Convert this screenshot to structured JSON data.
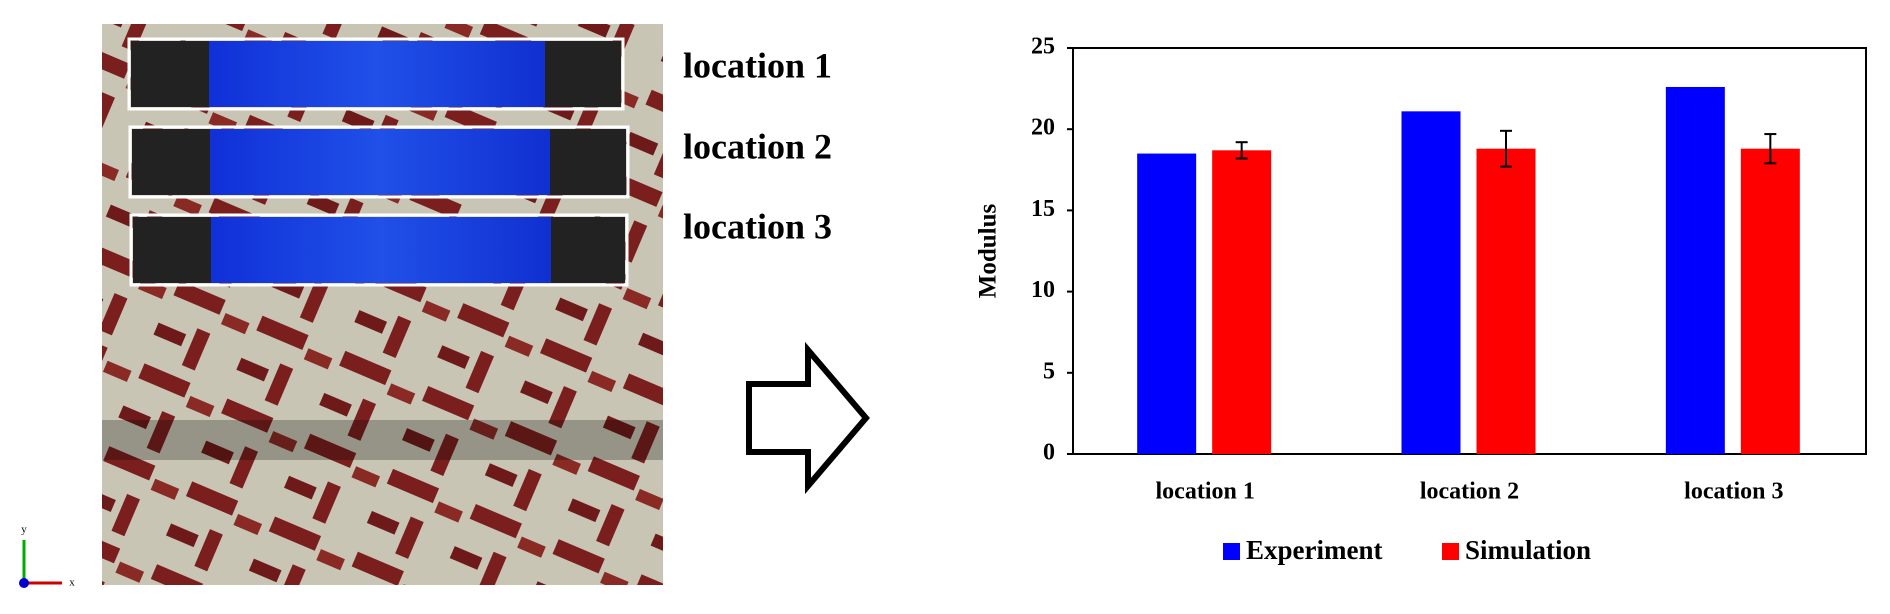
{
  "image_labels": [
    "location 1",
    "location 2",
    "location 3"
  ],
  "axis_triad": [
    "y",
    "x"
  ],
  "chart_data": {
    "type": "bar",
    "ylabel": "Modulus",
    "categories": [
      "location 1",
      "location 2",
      "location 3"
    ],
    "series": [
      {
        "name": "Experiment",
        "color": "#0000ff",
        "values": [
          18.5,
          21.1,
          22.6
        ]
      },
      {
        "name": "Simulation",
        "color": "#ff0000",
        "values": [
          18.7,
          18.8,
          18.8
        ],
        "errors": [
          0.5,
          1.1,
          0.9
        ]
      }
    ],
    "ylim": [
      0,
      25
    ],
    "yticks": [
      0,
      5,
      10,
      15,
      20,
      25
    ],
    "grid": false,
    "legend": "bottom"
  }
}
